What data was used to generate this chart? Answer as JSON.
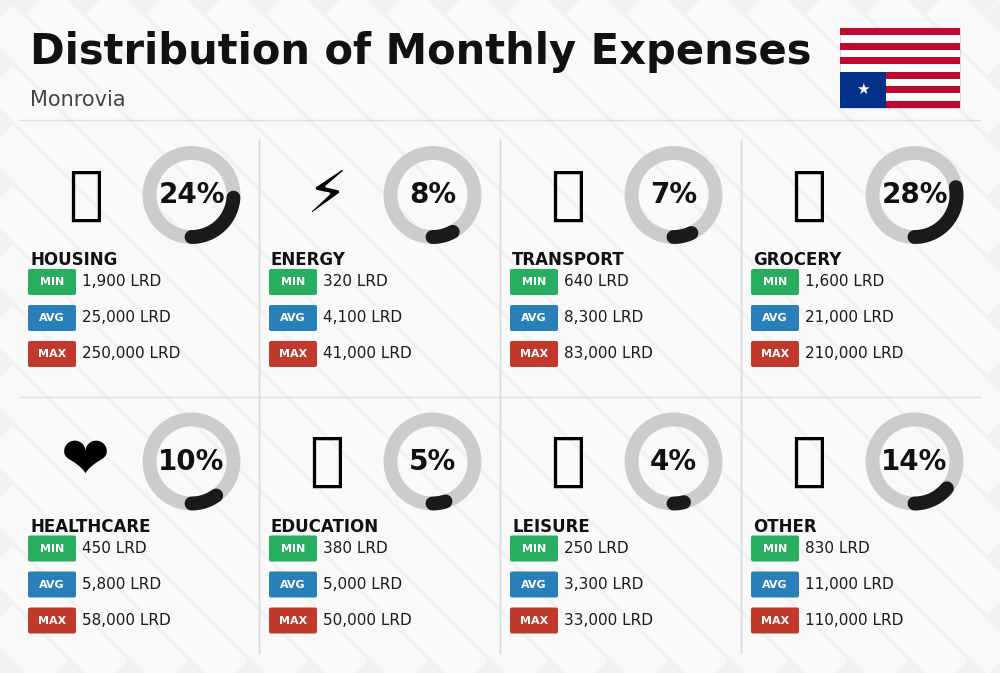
{
  "title": "Distribution of Monthly Expenses",
  "subtitle": "Monrovia",
  "background_color": "#f2f2f2",
  "categories": [
    {
      "name": "HOUSING",
      "percent": 24,
      "min": "1,900 LRD",
      "avg": "25,000 LRD",
      "max": "250,000 LRD",
      "row": 0,
      "col": 0
    },
    {
      "name": "ENERGY",
      "percent": 8,
      "min": "320 LRD",
      "avg": "4,100 LRD",
      "max": "41,000 LRD",
      "row": 0,
      "col": 1
    },
    {
      "name": "TRANSPORT",
      "percent": 7,
      "min": "640 LRD",
      "avg": "8,300 LRD",
      "max": "83,000 LRD",
      "row": 0,
      "col": 2
    },
    {
      "name": "GROCERY",
      "percent": 28,
      "min": "1,600 LRD",
      "avg": "21,000 LRD",
      "max": "210,000 LRD",
      "row": 0,
      "col": 3
    },
    {
      "name": "HEALTHCARE",
      "percent": 10,
      "min": "450 LRD",
      "avg": "5,800 LRD",
      "max": "58,000 LRD",
      "row": 1,
      "col": 0
    },
    {
      "name": "EDUCATION",
      "percent": 5,
      "min": "380 LRD",
      "avg": "5,000 LRD",
      "max": "50,000 LRD",
      "row": 1,
      "col": 1
    },
    {
      "name": "LEISURE",
      "percent": 4,
      "min": "250 LRD",
      "avg": "3,300 LRD",
      "max": "33,000 LRD",
      "row": 1,
      "col": 2
    },
    {
      "name": "OTHER",
      "percent": 14,
      "min": "830 LRD",
      "avg": "11,000 LRD",
      "max": "110,000 LRD",
      "row": 1,
      "col": 3
    }
  ],
  "color_min": "#27ae60",
  "color_avg": "#2980b9",
  "color_max": "#c0392b",
  "color_ring_active": "#1a1a1a",
  "color_ring_bg": "#cccccc",
  "title_fontsize": 30,
  "subtitle_fontsize": 15,
  "category_fontsize": 12,
  "value_fontsize": 11,
  "percent_fontsize": 20,
  "stripe_color": "#e8e8e8",
  "divider_color": "#dddddd",
  "flag_red": "#BF0A30",
  "flag_blue": "#003087"
}
